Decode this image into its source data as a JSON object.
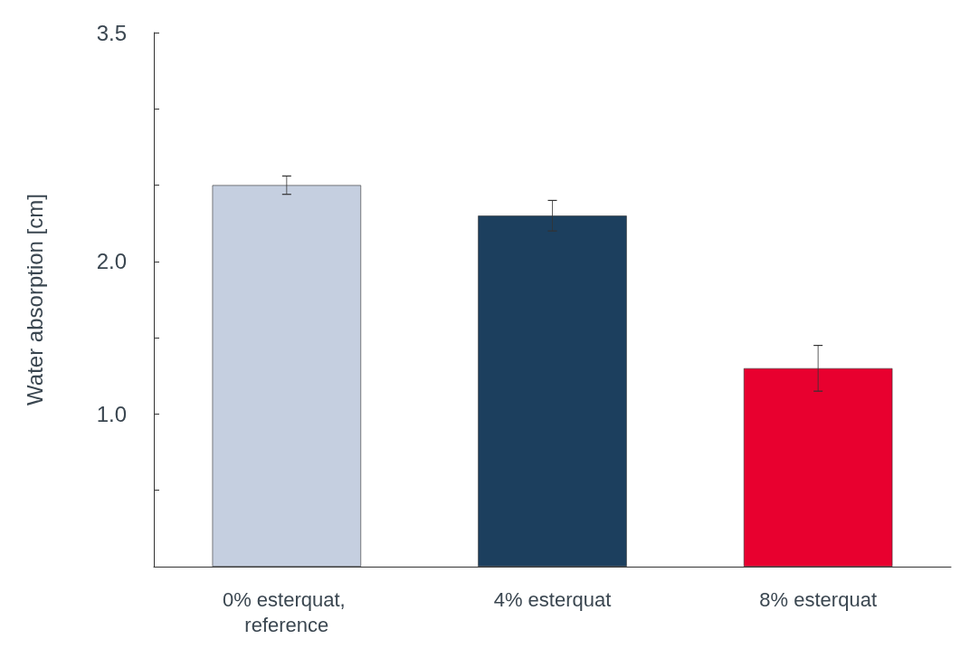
{
  "chart_data": {
    "type": "bar",
    "ylabel": "Water absorption [cm]",
    "categories": [
      "0% esterquat, reference",
      "4% esterquat",
      "8% esterquat"
    ],
    "values": [
      2.5,
      2.3,
      1.3
    ],
    "colors": [
      "#c5cfe0",
      "#1c3f5e",
      "#e8002f"
    ],
    "errors": [
      0.06,
      0.1,
      0.15
    ],
    "ylim": [
      0,
      3.5
    ],
    "yticks": [
      {
        "value": 0,
        "label": null
      },
      {
        "value": 0.5,
        "label": null
      },
      {
        "value": 1,
        "label": "1.0"
      },
      {
        "value": 1.5,
        "label": null
      },
      {
        "value": 2,
        "label": "2.0"
      },
      {
        "value": 2.5,
        "label": null
      },
      {
        "value": 3,
        "label": null
      },
      {
        "value": 3.5,
        "label": "3.5"
      }
    ],
    "grid": false
  }
}
